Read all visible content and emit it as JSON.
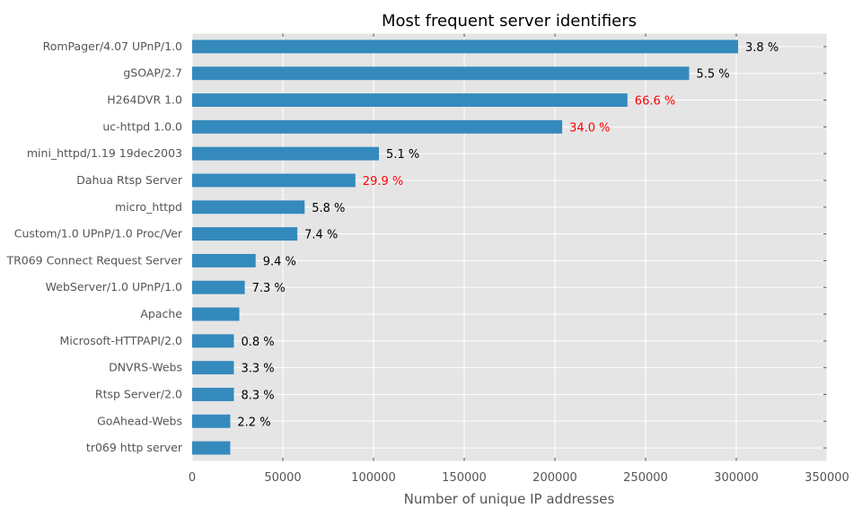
{
  "chart_data": {
    "type": "bar",
    "orientation": "horizontal",
    "title": "Most frequent server identifiers",
    "xlabel": "Number of unique IP addresses",
    "ylabel": "",
    "xlim": [
      0,
      350000
    ],
    "xticks": [
      0,
      50000,
      100000,
      150000,
      200000,
      250000,
      300000,
      350000
    ],
    "grid": true,
    "bar_color": "#348ABD",
    "background_color": "#E5E5E5",
    "highlight_color": "#FF0000",
    "normal_label_color": "#000000",
    "categories": [
      "RomPager/4.07 UPnP/1.0",
      "gSOAP/2.7",
      "H264DVR 1.0",
      "uc-httpd 1.0.0",
      "mini_httpd/1.19 19dec2003",
      "Dahua Rtsp Server",
      "micro_httpd",
      "Custom/1.0 UPnP/1.0 Proc/Ver",
      "TR069 Connect Request Server",
      "WebServer/1.0 UPnP/1.0",
      "Apache",
      "Microsoft-HTTPAPI/2.0",
      "DNVRS-Webs",
      "Rtsp Server/2.0",
      "GoAhead-Webs",
      "tr069 http server"
    ],
    "values": [
      301000,
      274000,
      240000,
      204000,
      103000,
      90000,
      62000,
      58000,
      35000,
      29000,
      26000,
      23000,
      23000,
      23000,
      21000,
      21000
    ],
    "annotations": [
      "3.8 %",
      "5.5 %",
      "66.6 %",
      "34.0 %",
      "5.1 %",
      "29.9 %",
      "5.8 %",
      "7.4 %",
      "9.4 %",
      "7.3 %",
      "",
      "0.8 %",
      "3.3 %",
      "8.3 %",
      "2.2 %",
      ""
    ],
    "annotation_highlighted": [
      false,
      false,
      true,
      true,
      false,
      true,
      false,
      false,
      false,
      false,
      false,
      false,
      false,
      false,
      false,
      false
    ]
  }
}
